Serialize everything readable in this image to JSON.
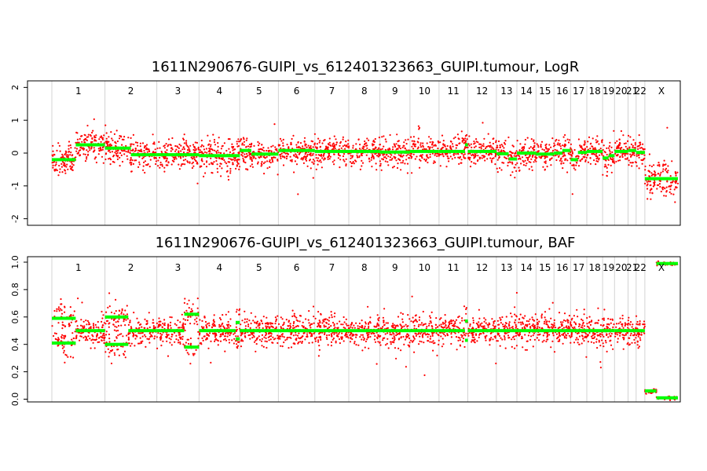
{
  "chart_data": [
    {
      "type": "scatter",
      "title": "1611N290676-GUIPI_vs_612401323663_GUIPI.tumour, LogR",
      "ylim": [
        -2.2,
        2.2
      ],
      "yticks": [
        -2,
        -1,
        0,
        1,
        2
      ],
      "ytick_labels": [
        "-2",
        "-1",
        "0",
        "1",
        "2"
      ],
      "grid": "vertical chromosome boundaries",
      "point_color": "#ff0000",
      "segment_color": "#00ff00",
      "segments": [
        {
          "chr": "1",
          "x0": 0.0,
          "x1": 0.45,
          "y": -0.2
        },
        {
          "chr": "1",
          "x0": 0.45,
          "x1": 1.0,
          "y": 0.25
        },
        {
          "chr": "2",
          "x0": 0.0,
          "x1": 0.5,
          "y": 0.15
        },
        {
          "chr": "2",
          "x0": 0.5,
          "x1": 1.0,
          "y": -0.05
        },
        {
          "chr": "3",
          "x0": 0.0,
          "x1": 1.0,
          "y": -0.05
        },
        {
          "chr": "4",
          "x0": 0.0,
          "x1": 1.0,
          "y": -0.08
        },
        {
          "chr": "5",
          "x0": 0.0,
          "x1": 0.3,
          "y": 0.08
        },
        {
          "chr": "5",
          "x0": 0.3,
          "x1": 1.0,
          "y": -0.03
        },
        {
          "chr": "6",
          "x0": 0.0,
          "x1": 1.0,
          "y": 0.08
        },
        {
          "chr": "7",
          "x0": 0.0,
          "x1": 1.0,
          "y": 0.05
        },
        {
          "chr": "8",
          "x0": 0.0,
          "x1": 1.0,
          "y": 0.05
        },
        {
          "chr": "9",
          "x0": 0.0,
          "x1": 1.0,
          "y": 0.03
        },
        {
          "chr": "10",
          "x0": 0.0,
          "x1": 1.0,
          "y": 0.05
        },
        {
          "chr": "11",
          "x0": 0.0,
          "x1": 0.9,
          "y": 0.05
        },
        {
          "chr": "11",
          "x0": 0.9,
          "x1": 1.0,
          "y": 0.25
        },
        {
          "chr": "12",
          "x0": 0.0,
          "x1": 1.0,
          "y": 0.05
        },
        {
          "chr": "13",
          "x0": 0.0,
          "x1": 0.6,
          "y": -0.02
        },
        {
          "chr": "13",
          "x0": 0.6,
          "x1": 1.0,
          "y": -0.18
        },
        {
          "chr": "14",
          "x0": 0.0,
          "x1": 1.0,
          "y": 0.0
        },
        {
          "chr": "15",
          "x0": 0.0,
          "x1": 1.0,
          "y": -0.03
        },
        {
          "chr": "16",
          "x0": 0.0,
          "x1": 0.5,
          "y": 0.0
        },
        {
          "chr": "16",
          "x0": 0.5,
          "x1": 1.0,
          "y": 0.08
        },
        {
          "chr": "17",
          "x0": 0.0,
          "x1": 0.45,
          "y": -0.2
        },
        {
          "chr": "17",
          "x0": 0.45,
          "x1": 1.0,
          "y": 0.02
        },
        {
          "chr": "18",
          "x0": 0.0,
          "x1": 1.0,
          "y": 0.05
        },
        {
          "chr": "19",
          "x0": 0.0,
          "x1": 0.5,
          "y": -0.15
        },
        {
          "chr": "19",
          "x0": 0.5,
          "x1": 1.0,
          "y": -0.08
        },
        {
          "chr": "20",
          "x0": 0.0,
          "x1": 1.0,
          "y": 0.05
        },
        {
          "chr": "21",
          "x0": 0.0,
          "x1": 1.0,
          "y": 0.08
        },
        {
          "chr": "22",
          "x0": 0.0,
          "x1": 1.0,
          "y": 0.02
        },
        {
          "chr": "X",
          "x0": 0.0,
          "x1": 1.0,
          "y": -0.78
        }
      ]
    },
    {
      "type": "scatter",
      "title": "1611N290676-GUIPI_vs_612401323663_GUIPI.tumour, BAF",
      "ylim": [
        -0.02,
        1.04
      ],
      "yticks": [
        0.0,
        0.2,
        0.4,
        0.6,
        0.8,
        1.0
      ],
      "ytick_labels": [
        "0.0",
        "0.2",
        "0.4",
        "0.6",
        "0.8",
        "1.0"
      ],
      "grid": "vertical chromosome boundaries",
      "point_color": "#ff0000",
      "segment_color": "#00ff00",
      "segments": [
        {
          "chr": "1",
          "x0": 0.0,
          "x1": 0.45,
          "y": 0.59
        },
        {
          "chr": "1",
          "x0": 0.0,
          "x1": 0.45,
          "y": 0.41
        },
        {
          "chr": "1",
          "x0": 0.45,
          "x1": 1.0,
          "y": 0.5
        },
        {
          "chr": "2",
          "x0": 0.0,
          "x1": 0.45,
          "y": 0.6
        },
        {
          "chr": "2",
          "x0": 0.0,
          "x1": 0.45,
          "y": 0.4
        },
        {
          "chr": "2",
          "x0": 0.45,
          "x1": 1.0,
          "y": 0.5
        },
        {
          "chr": "3",
          "x0": 0.0,
          "x1": 0.65,
          "y": 0.5
        },
        {
          "chr": "3",
          "x0": 0.65,
          "x1": 1.0,
          "y": 0.62
        },
        {
          "chr": "3",
          "x0": 0.65,
          "x1": 1.0,
          "y": 0.38
        },
        {
          "chr": "4",
          "x0": 0.0,
          "x1": 0.9,
          "y": 0.5
        },
        {
          "chr": "4",
          "x0": 0.9,
          "x1": 1.0,
          "y": 0.56
        },
        {
          "chr": "4",
          "x0": 0.9,
          "x1": 1.0,
          "y": 0.44
        },
        {
          "chr": "5",
          "x0": 0.0,
          "x1": 1.0,
          "y": 0.5
        },
        {
          "chr": "6",
          "x0": 0.0,
          "x1": 1.0,
          "y": 0.5
        },
        {
          "chr": "7",
          "x0": 0.0,
          "x1": 1.0,
          "y": 0.5
        },
        {
          "chr": "8",
          "x0": 0.0,
          "x1": 1.0,
          "y": 0.5
        },
        {
          "chr": "9",
          "x0": 0.0,
          "x1": 1.0,
          "y": 0.5
        },
        {
          "chr": "10",
          "x0": 0.0,
          "x1": 1.0,
          "y": 0.5
        },
        {
          "chr": "11",
          "x0": 0.0,
          "x1": 0.9,
          "y": 0.5
        },
        {
          "chr": "11",
          "x0": 0.9,
          "x1": 1.0,
          "y": 0.57
        },
        {
          "chr": "11",
          "x0": 0.9,
          "x1": 1.0,
          "y": 0.43
        },
        {
          "chr": "12",
          "x0": 0.0,
          "x1": 1.0,
          "y": 0.5
        },
        {
          "chr": "13",
          "x0": 0.0,
          "x1": 1.0,
          "y": 0.5
        },
        {
          "chr": "14",
          "x0": 0.0,
          "x1": 1.0,
          "y": 0.5
        },
        {
          "chr": "15",
          "x0": 0.0,
          "x1": 1.0,
          "y": 0.5
        },
        {
          "chr": "16",
          "x0": 0.0,
          "x1": 1.0,
          "y": 0.5
        },
        {
          "chr": "17",
          "x0": 0.0,
          "x1": 1.0,
          "y": 0.5
        },
        {
          "chr": "18",
          "x0": 0.0,
          "x1": 1.0,
          "y": 0.5
        },
        {
          "chr": "19",
          "x0": 0.0,
          "x1": 1.0,
          "y": 0.5
        },
        {
          "chr": "20",
          "x0": 0.0,
          "x1": 1.0,
          "y": 0.5
        },
        {
          "chr": "21",
          "x0": 0.0,
          "x1": 1.0,
          "y": 0.5
        },
        {
          "chr": "22",
          "x0": 0.0,
          "x1": 1.0,
          "y": 0.5
        },
        {
          "chr": "X",
          "x0": 0.0,
          "x1": 0.35,
          "y": 0.06
        },
        {
          "chr": "X",
          "x0": 0.35,
          "x1": 1.0,
          "y": 0.99
        },
        {
          "chr": "X",
          "x0": 0.35,
          "x1": 1.0,
          "y": 0.01
        }
      ]
    }
  ],
  "chromosomes": [
    {
      "label": "1",
      "length": 249
    },
    {
      "label": "2",
      "length": 243
    },
    {
      "label": "3",
      "length": 198
    },
    {
      "label": "4",
      "length": 191
    },
    {
      "label": "5",
      "length": 181
    },
    {
      "label": "6",
      "length": 171
    },
    {
      "label": "7",
      "length": 159
    },
    {
      "label": "8",
      "length": 146
    },
    {
      "label": "9",
      "length": 141
    },
    {
      "label": "10",
      "length": 136
    },
    {
      "label": "11",
      "length": 135
    },
    {
      "label": "12",
      "length": 134
    },
    {
      "label": "13",
      "length": 96
    },
    {
      "label": "14",
      "length": 90
    },
    {
      "label": "15",
      "length": 84
    },
    {
      "label": "16",
      "length": 78
    },
    {
      "label": "17",
      "length": 76
    },
    {
      "label": "18",
      "length": 74
    },
    {
      "label": "19",
      "length": 56
    },
    {
      "label": "20",
      "length": 63
    },
    {
      "label": "21",
      "length": 38
    },
    {
      "label": "22",
      "length": 41
    },
    {
      "label": "X",
      "length": 155
    }
  ]
}
